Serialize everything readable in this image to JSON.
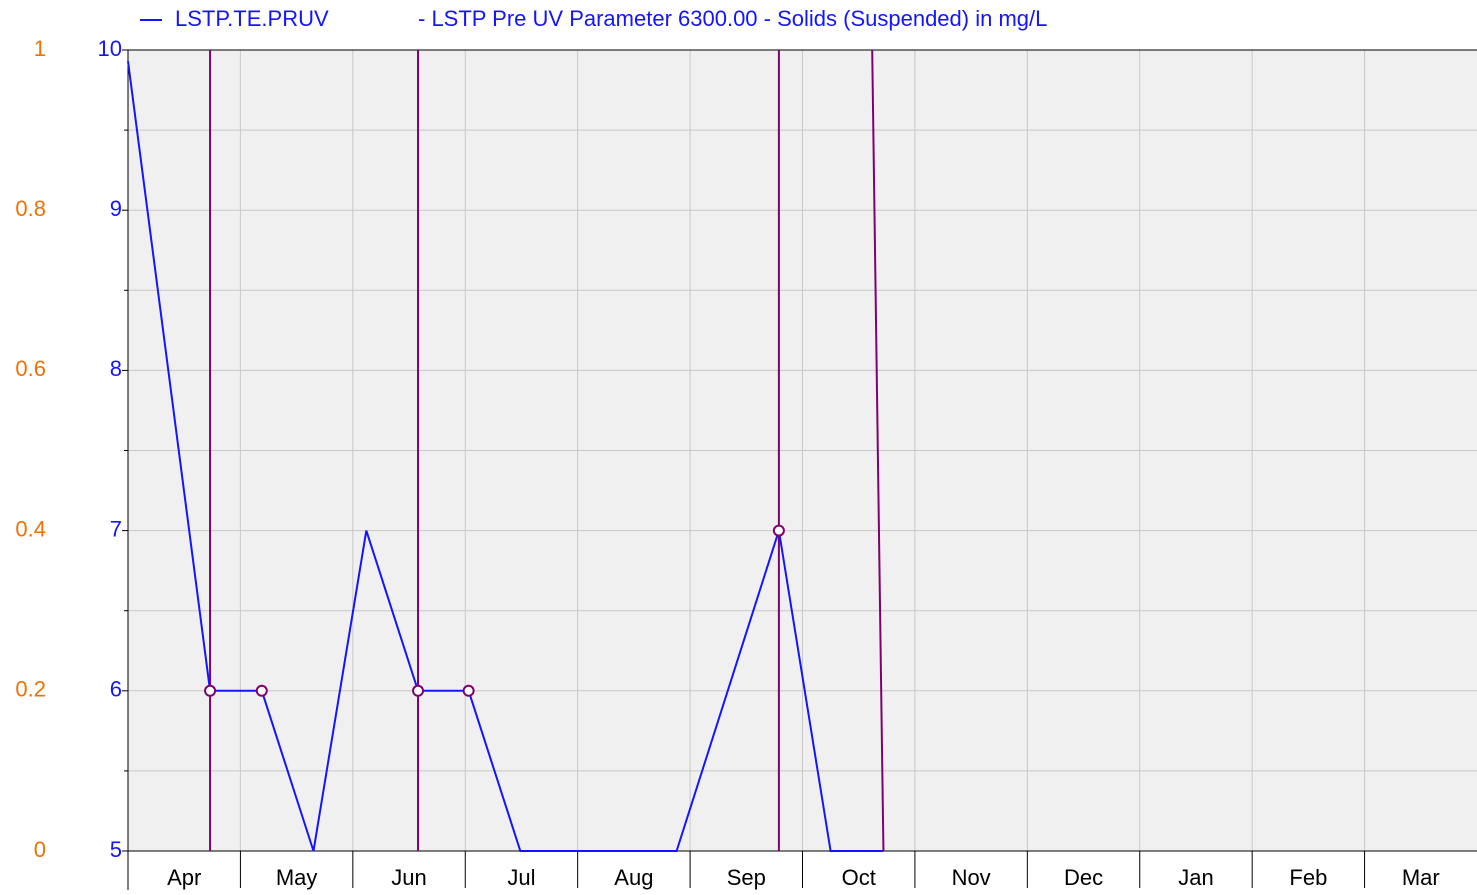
{
  "chart_data": {
    "type": "line",
    "description": "- LSTP Pre UV Parameter 6300.00 - Solids (Suspended) in mg/L",
    "xlim": [
      0,
      12
    ],
    "xticks": [
      {
        "value": 0.5,
        "label": "Apr"
      },
      {
        "value": 1.5,
        "label": "May"
      },
      {
        "value": 2.5,
        "label": "Jun"
      },
      {
        "value": 3.5,
        "label": "Jul"
      },
      {
        "value": 4.5,
        "label": "Aug"
      },
      {
        "value": 5.5,
        "label": "Sep"
      },
      {
        "value": 6.5,
        "label": "Oct"
      },
      {
        "value": 7.5,
        "label": "Nov"
      },
      {
        "value": 8.5,
        "label": "Dec"
      },
      {
        "value": 9.5,
        "label": "Jan"
      },
      {
        "value": 10.5,
        "label": "Feb"
      },
      {
        "value": 11.5,
        "label": "Mar"
      }
    ],
    "ylim": [
      5,
      10
    ],
    "yticks": [
      5,
      6,
      7,
      8,
      9,
      10
    ],
    "yminor_ticks": [
      5.5,
      6.5,
      7.5,
      8.5,
      9.5
    ],
    "y2lim": [
      0,
      1
    ],
    "y2ticks": [
      0,
      0.2,
      0.4,
      0.6,
      0.8,
      1
    ],
    "grid": true,
    "series": [
      {
        "name": "LSTP.TE.PRUV",
        "color": "#1414ff",
        "x": [
          0,
          0.73,
          1.19,
          1.65,
          2.12,
          2.58,
          3.03,
          3.49,
          4.88,
          5.79,
          6.25,
          6.72
        ],
        "values": [
          9.93,
          6,
          6,
          5,
          7,
          6,
          6,
          5,
          5,
          7,
          5,
          5
        ],
        "markers": [
          false,
          true,
          true,
          false,
          false,
          true,
          true,
          false,
          false,
          true,
          false,
          false
        ],
        "marker_color": "#800070"
      },
      {
        "color": "#800070",
        "axis": "y2",
        "x": [
          0.73,
          0.73,
          null,
          2.58,
          2.58,
          null,
          5.79,
          5.79,
          null,
          6.62,
          6.72
        ],
        "values": [
          0,
          1,
          null,
          0,
          1,
          null,
          0,
          1,
          null,
          1,
          0
        ]
      }
    ]
  }
}
